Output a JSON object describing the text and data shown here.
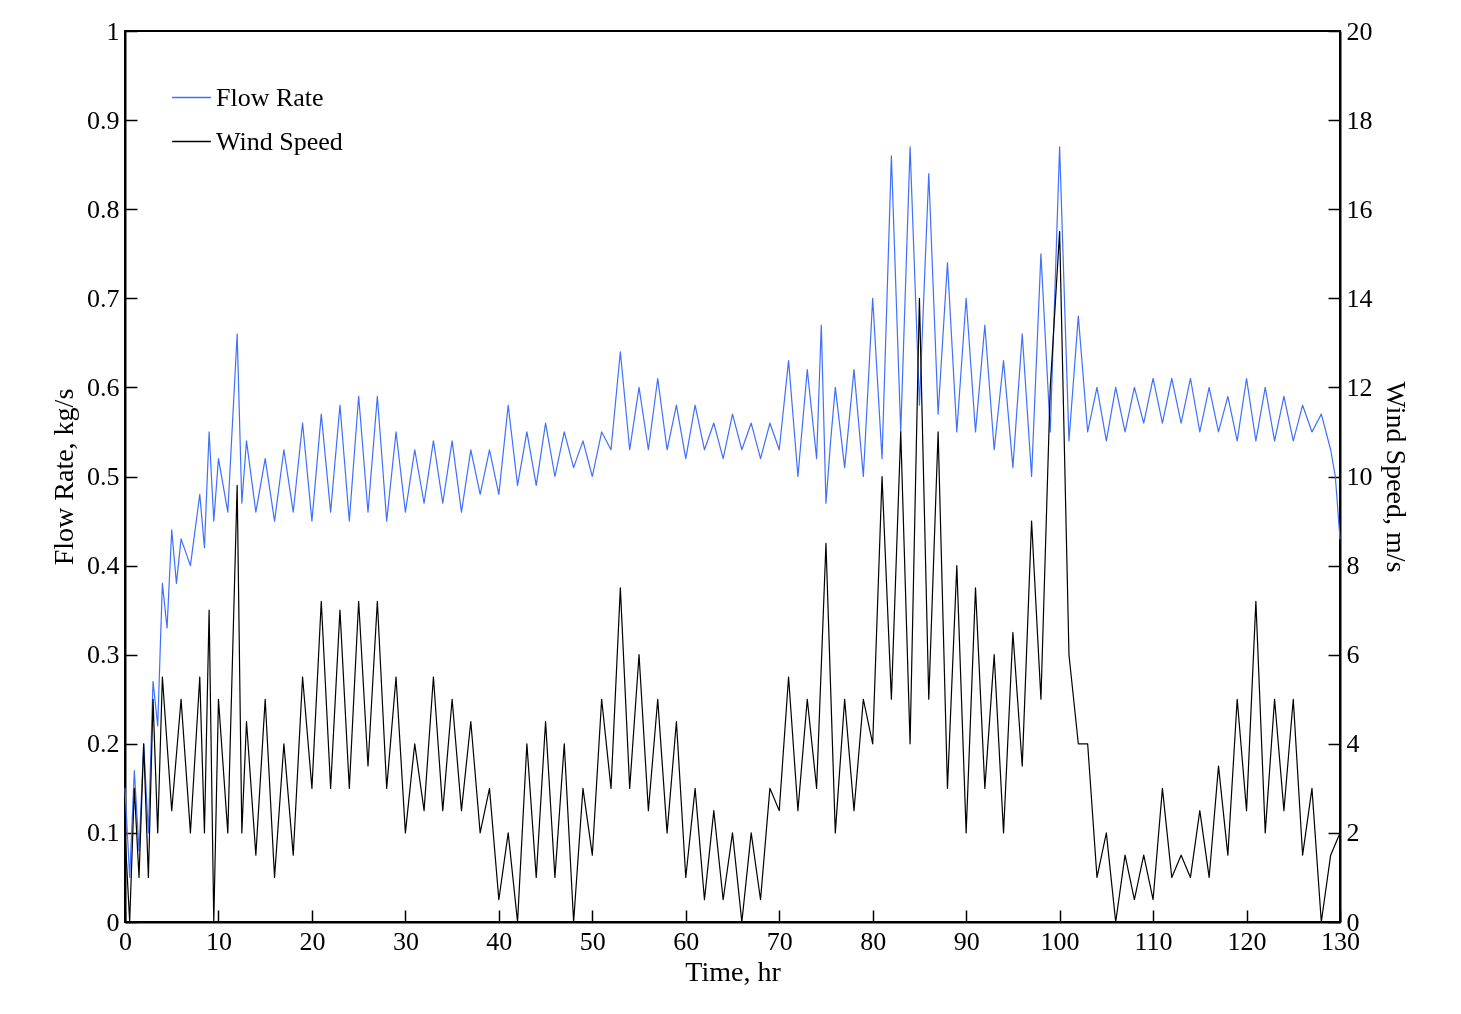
{
  "chart_data": {
    "type": "line",
    "xlabel": "Time, hr",
    "ylabel": "Flow Rate, kg/s",
    "y2label": "Wind Speed, m/s",
    "xlim": [
      0,
      130
    ],
    "xticks": [
      0,
      10,
      20,
      30,
      40,
      50,
      60,
      70,
      80,
      90,
      100,
      110,
      120,
      130
    ],
    "ylim": [
      0,
      1
    ],
    "yticks": [
      0,
      0.1,
      0.2,
      0.3,
      0.4,
      0.5,
      0.6,
      0.7,
      0.8,
      0.9,
      1
    ],
    "y2lim": [
      0,
      20
    ],
    "y2ticks": [
      0,
      2,
      4,
      6,
      8,
      10,
      12,
      14,
      16,
      18,
      20
    ],
    "grid": false,
    "legend": "top left",
    "series": [
      {
        "name": "Flow Rate",
        "color": "#3f6fff",
        "x": [
          0,
          0.5,
          1,
          1.5,
          2,
          2.5,
          3,
          3.5,
          4,
          4.5,
          5,
          5.5,
          6,
          7,
          8,
          8.5,
          9,
          9.5,
          10,
          11,
          12,
          12.5,
          13,
          14,
          15,
          16,
          17,
          18,
          19,
          20,
          21,
          22,
          23,
          24,
          25,
          26,
          27,
          28,
          29,
          30,
          31,
          32,
          33,
          34,
          35,
          36,
          37,
          38,
          39,
          40,
          41,
          42,
          43,
          44,
          45,
          46,
          47,
          48,
          49,
          50,
          51,
          52,
          53,
          54,
          55,
          56,
          57,
          58,
          59,
          60,
          61,
          62,
          63,
          64,
          65,
          66,
          67,
          68,
          69,
          70,
          71,
          72,
          73,
          74,
          74.5,
          75,
          75.5,
          76,
          77,
          78,
          79,
          80,
          81,
          82,
          83,
          84,
          85,
          86,
          87,
          88,
          89,
          90,
          91,
          92,
          93,
          94,
          95,
          96,
          97,
          98,
          99,
          100,
          101,
          102,
          103,
          104,
          105,
          106,
          107,
          108,
          109,
          110,
          111,
          112,
          113,
          114,
          115,
          116,
          117,
          118,
          119,
          120,
          121,
          122,
          123,
          124,
          125,
          126,
          127,
          128,
          129,
          129.5,
          130
        ],
        "values": [
          0.15,
          0.05,
          0.17,
          0.08,
          0.2,
          0.1,
          0.27,
          0.22,
          0.38,
          0.33,
          0.44,
          0.38,
          0.43,
          0.4,
          0.48,
          0.42,
          0.55,
          0.45,
          0.52,
          0.46,
          0.66,
          0.47,
          0.54,
          0.46,
          0.52,
          0.45,
          0.53,
          0.46,
          0.56,
          0.45,
          0.57,
          0.46,
          0.58,
          0.45,
          0.59,
          0.46,
          0.59,
          0.45,
          0.55,
          0.46,
          0.53,
          0.47,
          0.54,
          0.47,
          0.54,
          0.46,
          0.53,
          0.48,
          0.53,
          0.48,
          0.58,
          0.49,
          0.55,
          0.49,
          0.56,
          0.5,
          0.55,
          0.51,
          0.54,
          0.5,
          0.55,
          0.53,
          0.64,
          0.53,
          0.6,
          0.53,
          0.61,
          0.53,
          0.58,
          0.52,
          0.58,
          0.53,
          0.56,
          0.52,
          0.57,
          0.53,
          0.56,
          0.52,
          0.56,
          0.53,
          0.63,
          0.5,
          0.62,
          0.52,
          0.67,
          0.47,
          0.54,
          0.6,
          0.51,
          0.62,
          0.5,
          0.7,
          0.52,
          0.86,
          0.55,
          0.87,
          0.58,
          0.84,
          0.57,
          0.74,
          0.55,
          0.7,
          0.55,
          0.67,
          0.53,
          0.63,
          0.51,
          0.66,
          0.5,
          0.75,
          0.55,
          0.87,
          0.54,
          0.68,
          0.55,
          0.6,
          0.54,
          0.6,
          0.55,
          0.6,
          0.56,
          0.61,
          0.56,
          0.61,
          0.56,
          0.61,
          0.55,
          0.6,
          0.55,
          0.59,
          0.54,
          0.61,
          0.54,
          0.6,
          0.54,
          0.59,
          0.54,
          0.58,
          0.55,
          0.57,
          0.53,
          0.5,
          0.43
        ]
      },
      {
        "name": "Wind Speed",
        "color": "#000000",
        "axis": "y2",
        "x": [
          0,
          0.5,
          1,
          1.5,
          2,
          2.5,
          3,
          3.5,
          4,
          5,
          6,
          7,
          8,
          8.5,
          9,
          9.5,
          10,
          11,
          12,
          12.5,
          13,
          14,
          15,
          16,
          17,
          18,
          19,
          20,
          21,
          22,
          23,
          24,
          25,
          26,
          27,
          28,
          29,
          30,
          31,
          32,
          33,
          34,
          35,
          36,
          37,
          38,
          39,
          40,
          41,
          42,
          43,
          44,
          45,
          46,
          47,
          48,
          49,
          50,
          51,
          52,
          53,
          54,
          55,
          56,
          57,
          58,
          59,
          60,
          61,
          62,
          63,
          64,
          65,
          66,
          67,
          68,
          69,
          70,
          71,
          72,
          73,
          74,
          75,
          76,
          77,
          78,
          79,
          80,
          81,
          82,
          83,
          84,
          85,
          86,
          87,
          88,
          89,
          90,
          91,
          92,
          93,
          94,
          95,
          96,
          97,
          98,
          99,
          100,
          101,
          102,
          103,
          104,
          105,
          106,
          107,
          108,
          109,
          110,
          111,
          112,
          113,
          114,
          115,
          116,
          117,
          118,
          119,
          120,
          121,
          122,
          123,
          124,
          125,
          126,
          127,
          128,
          129,
          130
        ],
        "values": [
          2,
          0,
          3,
          1,
          4,
          1,
          5,
          2,
          5.5,
          2.5,
          5,
          2,
          5.5,
          2,
          7,
          0,
          5,
          2,
          9.8,
          2,
          4.5,
          1.5,
          5,
          1,
          4,
          1.5,
          5.5,
          3,
          7.2,
          3,
          7,
          3,
          7.2,
          3.5,
          7.2,
          3,
          5.5,
          2,
          4,
          2.5,
          5.5,
          2.5,
          5,
          2.5,
          4.5,
          2,
          3,
          0.5,
          2,
          0,
          4,
          1,
          4.5,
          1,
          4,
          0,
          3,
          1.5,
          5,
          3,
          7.5,
          3,
          6,
          2.5,
          5,
          2,
          4.5,
          1,
          3,
          0.5,
          2.5,
          0.5,
          2,
          0,
          2,
          0.5,
          3,
          2.5,
          5.5,
          2.5,
          5,
          3,
          8.5,
          2,
          5,
          2.5,
          5,
          4,
          10,
          5,
          11,
          4,
          14,
          5,
          11,
          3,
          8,
          2,
          7.5,
          3,
          6,
          2,
          6.5,
          3.5,
          9,
          5,
          12,
          15.5,
          6,
          4,
          4,
          1,
          2,
          0,
          1.5,
          0.5,
          1.5,
          0.5,
          3,
          1,
          1.5,
          1,
          2.5,
          1,
          3.5,
          1.5,
          5,
          2.5,
          7.2,
          2,
          5,
          2.5,
          5,
          1.5,
          3,
          0,
          1.5,
          2
        ]
      }
    ]
  }
}
